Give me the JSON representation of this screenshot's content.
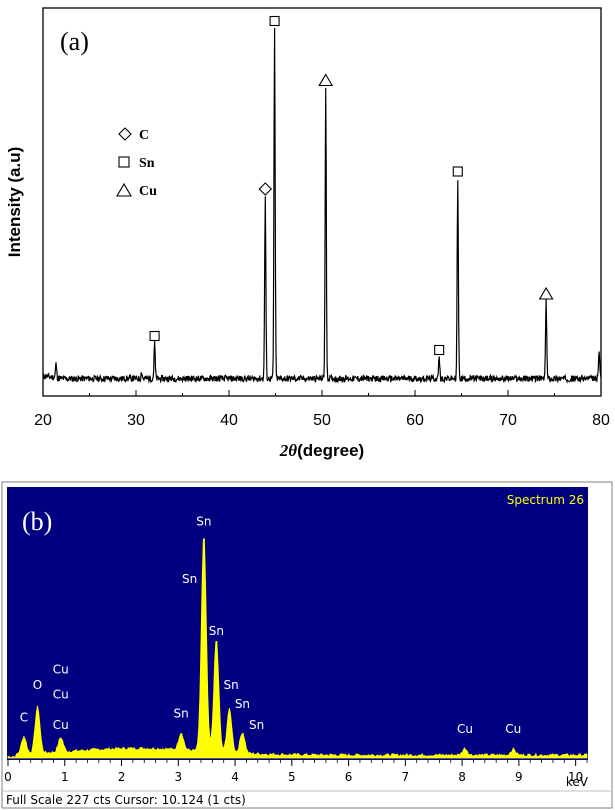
{
  "chart_data": [
    {
      "type": "line",
      "panel_label": "(a)",
      "xlabel_symbol": "2θ",
      "xlabel_text": "(degree)",
      "ylabel": "Intensity (a.u)",
      "xlim": [
        20,
        80
      ],
      "x_ticks": [
        "20",
        "30",
        "40",
        "50",
        "60",
        "70",
        "80"
      ],
      "grid": false,
      "legend": [
        {
          "marker": "diamond",
          "label": "C"
        },
        {
          "marker": "square",
          "label": "Sn"
        },
        {
          "marker": "triangle",
          "label": "Cu"
        }
      ],
      "peaks": [
        {
          "x": 32.0,
          "height": 0.1,
          "marker": "square"
        },
        {
          "x": 43.9,
          "height": 0.52,
          "marker": "diamond"
        },
        {
          "x": 44.9,
          "height": 1.0,
          "marker": "square"
        },
        {
          "x": 50.4,
          "height": 0.83,
          "marker": "triangle"
        },
        {
          "x": 62.6,
          "height": 0.06,
          "marker": "square"
        },
        {
          "x": 64.6,
          "height": 0.57,
          "marker": "square"
        },
        {
          "x": 74.1,
          "height": 0.22,
          "marker": "triangle"
        }
      ],
      "minor_peaks": [
        {
          "x": 21.4,
          "height": 0.04
        },
        {
          "x": 30.6,
          "height": 0.02
        },
        {
          "x": 79.8,
          "height": 0.08
        }
      ]
    },
    {
      "type": "area",
      "panel_label": "(b)",
      "spectrum_name": "Spectrum 26",
      "xlabel": "keV",
      "xlim": [
        0,
        10.2
      ],
      "x_ticks": [
        "0",
        "1",
        "2",
        "3",
        "4",
        "5",
        "6",
        "7",
        "8",
        "9",
        "10"
      ],
      "footer": "Full Scale 227 cts Cursor: 10.124  (1 cts)",
      "background_color": "#000080",
      "trace_color": "#ffff00",
      "peaks": [
        {
          "x": 0.28,
          "cts": 18
        },
        {
          "x": 0.52,
          "cts": 48
        },
        {
          "x": 0.93,
          "cts": 15
        },
        {
          "x": 3.05,
          "cts": 18
        },
        {
          "x": 3.45,
          "cts": 227
        },
        {
          "x": 3.67,
          "cts": 118
        },
        {
          "x": 3.9,
          "cts": 45
        },
        {
          "x": 4.13,
          "cts": 22
        },
        {
          "x": 8.05,
          "cts": 7
        },
        {
          "x": 8.9,
          "cts": 6
        }
      ],
      "element_labels": [
        {
          "text": "C",
          "x": 0.28,
          "level": 38
        },
        {
          "text": "O",
          "x": 0.52,
          "level": 72
        },
        {
          "text": "Cu",
          "x": 0.93,
          "level": 88
        },
        {
          "text": "Cu",
          "x": 0.93,
          "level": 62
        },
        {
          "text": "Cu",
          "x": 0.93,
          "level": 30
        },
        {
          "text": "Sn",
          "x": 3.05,
          "level": 42
        },
        {
          "text": "Sn",
          "x": 3.45,
          "level": 242
        },
        {
          "text": "Sn",
          "x": 3.2,
          "level": 182
        },
        {
          "text": "Sn",
          "x": 3.67,
          "level": 128
        },
        {
          "text": "Sn",
          "x": 3.93,
          "level": 72
        },
        {
          "text": "Sn",
          "x": 4.13,
          "level": 52
        },
        {
          "text": "Sn",
          "x": 4.38,
          "level": 30
        },
        {
          "text": "Cu",
          "x": 8.05,
          "level": 26
        },
        {
          "text": "Cu",
          "x": 8.9,
          "level": 26
        }
      ]
    }
  ]
}
